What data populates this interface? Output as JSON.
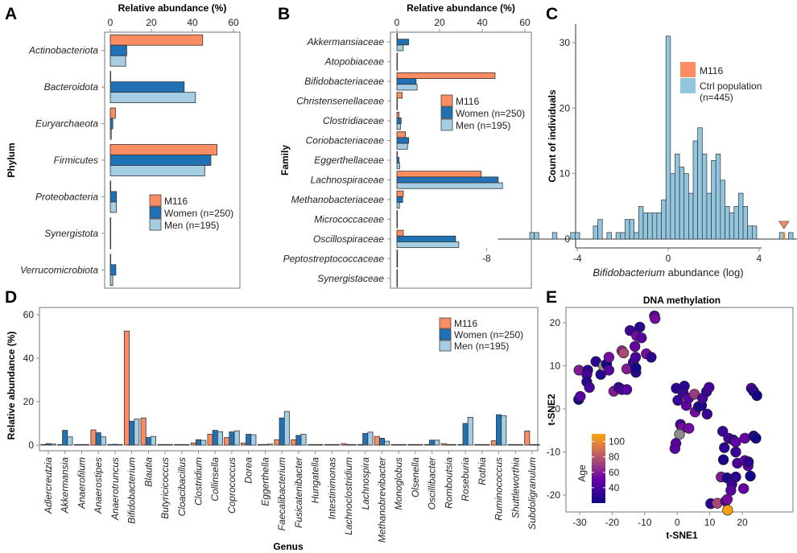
{
  "colors": {
    "m116": "#fc8d62",
    "women": "#2171b5",
    "men": "#a6cee3",
    "ctrl": "#92c5de",
    "age_low": "#1a0a8c",
    "age_mid": "#7b3a8a",
    "age_high": "#fca50a",
    "na": "#8c8c8c"
  },
  "legend": {
    "m116": "M116",
    "women": "Women (n=250)",
    "men": "Men (n=195)"
  },
  "chart_data": [
    {
      "panel": "A",
      "type": "bar",
      "orientation": "horizontal",
      "title": "Relative abundance (%)",
      "xlabel": "Relative abundance (%)",
      "ylabel": "Phylum",
      "xlim": [
        0,
        60
      ],
      "xticks": [
        "0",
        "20",
        "40",
        "60"
      ],
      "legend_position": "bottom-right",
      "categories": [
        "Actinobacteriota",
        "Bacteroidota",
        "Euryarchaeota",
        "Firmicutes",
        "Proteobacteria",
        "Synergistota",
        "Verrucomicrobiota"
      ],
      "series": [
        {
          "name": "M116",
          "values": [
            45,
            0,
            2.5,
            52,
            0,
            0,
            0
          ]
        },
        {
          "name": "Women (n=250)",
          "values": [
            8,
            36,
            1.2,
            49,
            3,
            0,
            2.7
          ]
        },
        {
          "name": "Men (n=195)",
          "values": [
            7.5,
            41.5,
            0.5,
            46,
            3,
            0,
            1.2
          ]
        }
      ]
    },
    {
      "panel": "B",
      "type": "bar",
      "orientation": "horizontal",
      "title": "Relative abundance (%)",
      "xlabel": "Relative abundance (%)",
      "ylabel": "Family",
      "xlim": [
        0,
        60
      ],
      "xticks": [
        "0",
        "20",
        "40",
        "60"
      ],
      "legend_position": "top-right",
      "categories": [
        "Akkermansiaceae",
        "Atopobiaceae",
        "Bifidobacteriaceae",
        "Christensenellaceae",
        "Clostridiaceae",
        "Coriobacteriaceae",
        "Eggerthellaceae",
        "Lachnospiraceae",
        "Methanobacteriaceae",
        "Micrococcaceae",
        "Oscillospiraceae",
        "Peptostreptococcaceae",
        "Synergistaceae"
      ],
      "series": [
        {
          "name": "M116",
          "values": [
            0,
            0,
            46,
            2.5,
            1,
            4,
            0,
            39.5,
            3,
            0,
            3,
            0.3,
            0
          ]
        },
        {
          "name": "Women (n=250)",
          "values": [
            5.5,
            0.2,
            9,
            0,
            2,
            5.5,
            1,
            47.5,
            2.7,
            0,
            27.5,
            0.3,
            0.2
          ]
        },
        {
          "name": "Men (n=195)",
          "values": [
            3,
            0,
            9.5,
            0,
            1.7,
            5,
            1.3,
            49.5,
            1.2,
            0.2,
            29,
            0.3,
            0
          ]
        }
      ]
    },
    {
      "panel": "C",
      "type": "bar",
      "subtype": "histogram",
      "xlabel_italic": "Bifidobacterium",
      "xlabel_rest": " abundance (log)",
      "ylabel": "Count of individuals",
      "xlim": [
        -8,
        8
      ],
      "ylim": [
        0,
        31
      ],
      "xticks": [
        "-8",
        "-4",
        "0",
        "4",
        "8"
      ],
      "yticks": [
        "0",
        "10",
        "20",
        "30"
      ],
      "legend_position": "top-right",
      "legend": [
        "M116",
        "Ctrl population",
        "(n=445)"
      ],
      "bin_width": 0.2,
      "bins_start": [
        -6.1,
        -5.9,
        -5.1,
        -4.3,
        -4.1,
        -3.3,
        -3.1,
        -2.7,
        -2.3,
        -2.1,
        -1.9,
        -1.7,
        -1.5,
        -1.3,
        -1.1,
        -0.9,
        -0.7,
        -0.5,
        -0.3,
        -0.1,
        0.1,
        0.3,
        0.5,
        0.7,
        0.9,
        1.1,
        1.3,
        1.5,
        1.7,
        1.9,
        2.1,
        2.3,
        2.5,
        2.7,
        2.9,
        3.1,
        3.3,
        3.5,
        3.7,
        4.9,
        5.3,
        6.1
      ],
      "counts": [
        1,
        1,
        1,
        1,
        1,
        2,
        3,
        1,
        1,
        1,
        3,
        3,
        1,
        5,
        4,
        4,
        4,
        4,
        6,
        31,
        10,
        13,
        11,
        10,
        7,
        15,
        17,
        13,
        7,
        12,
        13,
        9,
        5,
        4,
        5,
        7,
        5,
        2,
        2,
        1,
        1,
        1
      ],
      "m116_value": 5.1
    },
    {
      "panel": "D",
      "type": "bar",
      "orientation": "vertical",
      "xlabel": "Genus",
      "ylabel": "Relative abundance (%)",
      "ylim": [
        0,
        60
      ],
      "yticks": [
        "0",
        "20",
        "40",
        "60"
      ],
      "legend_position": "top-right",
      "categories": [
        "Adlercreutzia",
        "Akkermansia",
        "Anaerofilum",
        "Anaerostipes",
        "Anaerotruncus",
        "Bifidobacterium",
        "Blautia",
        "Butyricicoccus",
        "Cloacibacillus",
        "Clostridium",
        "Collinsella",
        "Coprococcus",
        "Dorea",
        "Eggerthella",
        "Faecalibacterium",
        "Fusicatenibacter",
        "Hungatella",
        "Intestinimonas",
        "Lachnoclostridium",
        "Lachnospira",
        "Methanobrevibacter",
        "Monoglobus",
        "Olsenella",
        "Oscillibacter",
        "Romboutsia",
        "Roseburia",
        "Rothia",
        "Ruminococcus",
        "Shuttleworthia",
        "Subdoligranulum"
      ],
      "series": [
        {
          "name": "M116",
          "values": [
            0,
            0,
            0,
            7,
            0,
            52.5,
            12.5,
            0,
            0,
            1,
            5,
            3.5,
            1,
            0,
            2.5,
            2.5,
            0,
            0,
            0.7,
            0,
            4,
            0,
            0,
            0,
            0.7,
            0,
            0,
            2,
            0,
            6.5
          ]
        },
        {
          "name": "Women (n=250)",
          "values": [
            0.7,
            6.8,
            0,
            5.7,
            0.4,
            11,
            3.5,
            0.2,
            0.2,
            2.5,
            6.8,
            6.1,
            5,
            0.2,
            12.5,
            4.5,
            0.2,
            0.2,
            0.2,
            5.4,
            3.2,
            0.2,
            0.2,
            2.3,
            0.2,
            10,
            0.2,
            14,
            0.2,
            0
          ]
        },
        {
          "name": "Men (n=195)",
          "values": [
            0.5,
            3.8,
            0,
            3.8,
            0.2,
            12,
            4,
            0.2,
            0.2,
            2.2,
            6.2,
            6.6,
            4.8,
            0.5,
            15.5,
            5,
            0.2,
            0.2,
            0.2,
            6,
            1.8,
            0.2,
            0.2,
            2.3,
            0.2,
            12.8,
            0.2,
            13.5,
            0.2,
            0.2
          ]
        }
      ]
    },
    {
      "panel": "E",
      "type": "scatter",
      "title": "DNA methylation",
      "xlabel": "t-SNE1",
      "ylabel": "t-SNE2",
      "xlim": [
        -33,
        27
      ],
      "ylim": [
        -26,
        24
      ],
      "xticks": [
        "-30",
        "-20",
        "-10",
        "0",
        "10",
        "20"
      ],
      "yticks": [
        "-20",
        "-10",
        "0",
        "10",
        "20"
      ],
      "colorbar": {
        "title": "Age",
        "range": [
          20,
          110
        ],
        "ticks": [
          "40",
          "60",
          "80",
          "100"
        ]
      },
      "legend_position": "bottom-left",
      "points": [
        {
          "x": -30.3,
          "y": 2.2,
          "age": 22
        },
        {
          "x": -29.8,
          "y": 2.9,
          "age": 45
        },
        {
          "x": -30.2,
          "y": 9,
          "age": 60
        },
        {
          "x": -27.5,
          "y": 9,
          "age": 30
        },
        {
          "x": -27.8,
          "y": 8,
          "age": 40
        },
        {
          "x": -27.8,
          "y": 6.3,
          "age": 30
        },
        {
          "x": -27,
          "y": 5,
          "age": 40
        },
        {
          "x": -25,
          "y": 11,
          "age": 30
        },
        {
          "x": -23.5,
          "y": 8,
          "age": 28
        },
        {
          "x": -22.7,
          "y": 10,
          "age": null
        },
        {
          "x": -21.7,
          "y": 10.4,
          "age": 22
        },
        {
          "x": -21,
          "y": 12,
          "age": 55
        },
        {
          "x": -21,
          "y": 9,
          "age": 45
        },
        {
          "x": -19.5,
          "y": 4.1,
          "age": 60
        },
        {
          "x": -18,
          "y": 5,
          "age": 35
        },
        {
          "x": -17,
          "y": 4.5,
          "age": 40
        },
        {
          "x": -15.5,
          "y": 4.5,
          "age": 45
        },
        {
          "x": -17,
          "y": 13.5,
          "age": 65
        },
        {
          "x": -16.5,
          "y": 13,
          "age": 75
        },
        {
          "x": -15.5,
          "y": 9.3,
          "age": 60
        },
        {
          "x": -14.5,
          "y": 18.2,
          "age": 35
        },
        {
          "x": -13.5,
          "y": 10.8,
          "age": 40
        },
        {
          "x": -13,
          "y": 14.5,
          "age": 50
        },
        {
          "x": -12.8,
          "y": 12,
          "age": 40
        },
        {
          "x": -12.7,
          "y": 8.5,
          "age": 30
        },
        {
          "x": -12.7,
          "y": 9.5,
          "age": 22
        },
        {
          "x": -12.5,
          "y": 17,
          "age": 55
        },
        {
          "x": -11.5,
          "y": 19,
          "age": 30
        },
        {
          "x": -11,
          "y": 16.5,
          "age": 45
        },
        {
          "x": -9.5,
          "y": 12.8,
          "age": 55
        },
        {
          "x": -8,
          "y": 12,
          "age": 30
        },
        {
          "x": -7,
          "y": 21.6,
          "age": 45
        },
        {
          "x": -6.8,
          "y": 21,
          "age": 55
        },
        {
          "x": -0.3,
          "y": 4.8,
          "age": 30
        },
        {
          "x": 0.2,
          "y": 2,
          "age": 35
        },
        {
          "x": 1.8,
          "y": 3.8,
          "age": 35
        },
        {
          "x": 2.2,
          "y": 5.3,
          "age": 30
        },
        {
          "x": 2.8,
          "y": 0.8,
          "age": 50
        },
        {
          "x": 3.5,
          "y": 2.5,
          "age": 45
        },
        {
          "x": 5.3,
          "y": 3.4,
          "age": 70
        },
        {
          "x": 5.5,
          "y": -0.7,
          "age": 55
        },
        {
          "x": 6.5,
          "y": 0.5,
          "age": 30
        },
        {
          "x": 7.5,
          "y": 0.8,
          "age": 25
        },
        {
          "x": 7.8,
          "y": 2.5,
          "age": 40
        },
        {
          "x": 9,
          "y": 4,
          "age": 35
        },
        {
          "x": 9.8,
          "y": 5,
          "age": 40
        },
        {
          "x": 9.2,
          "y": -1.2,
          "age": 35
        },
        {
          "x": 1,
          "y": -3.6,
          "age": 40
        },
        {
          "x": 1.5,
          "y": -4.4,
          "age": 55
        },
        {
          "x": 3.6,
          "y": -4.5,
          "age": 55
        },
        {
          "x": 0.7,
          "y": -5.9,
          "age": null
        },
        {
          "x": -0.4,
          "y": -8,
          "age": 45
        },
        {
          "x": -0.7,
          "y": -9.2,
          "age": 45
        },
        {
          "x": 22.8,
          "y": 4.8,
          "age": 40
        },
        {
          "x": 23.5,
          "y": 4.1,
          "age": 30
        },
        {
          "x": 24.5,
          "y": 3.1,
          "age": 22
        },
        {
          "x": 14,
          "y": -5.2,
          "age": 35
        },
        {
          "x": 15.8,
          "y": -6.8,
          "age": 40
        },
        {
          "x": 17.2,
          "y": -7.2,
          "age": 30
        },
        {
          "x": 18,
          "y": -7.7,
          "age": 50
        },
        {
          "x": 14.5,
          "y": -9,
          "age": 30
        },
        {
          "x": 18,
          "y": -10,
          "age": 35
        },
        {
          "x": 20.8,
          "y": -6.8,
          "age": 50
        },
        {
          "x": 23.5,
          "y": -6.3,
          "age": 30
        },
        {
          "x": 24.2,
          "y": -6.8,
          "age": 22
        },
        {
          "x": 14.2,
          "y": -11.8,
          "age": 25
        },
        {
          "x": 18.5,
          "y": -12.6,
          "age": 40
        },
        {
          "x": 20.8,
          "y": -12,
          "age": 50
        },
        {
          "x": 21.8,
          "y": -13.2,
          "age": 50
        },
        {
          "x": 21.9,
          "y": -12.3,
          "age": 30
        },
        {
          "x": 13.5,
          "y": -15.8,
          "age": 60
        },
        {
          "x": 15.3,
          "y": -16,
          "age": 25
        },
        {
          "x": 16.8,
          "y": -17.5,
          "age": 35
        },
        {
          "x": 18,
          "y": -15.8,
          "age": 30
        },
        {
          "x": 22.5,
          "y": -15.6,
          "age": 22
        },
        {
          "x": 16.5,
          "y": -18.9,
          "age": 45
        },
        {
          "x": 20.4,
          "y": -18.5,
          "age": 50
        },
        {
          "x": 10.3,
          "y": -22,
          "age": 30
        },
        {
          "x": 12.3,
          "y": -21.9,
          "age": 75
        },
        {
          "x": 14.9,
          "y": -21.4,
          "age": 40
        },
        {
          "x": 15.4,
          "y": -21,
          "age": 55
        },
        {
          "x": 15.5,
          "y": -23.5,
          "age": 108
        }
      ]
    }
  ]
}
